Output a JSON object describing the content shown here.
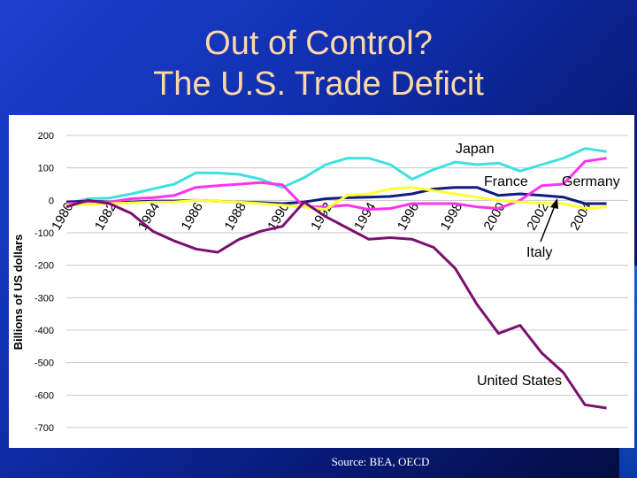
{
  "slide": {
    "title_line1": "Out of Control?",
    "title_line2": "The U.S. Trade Deficit",
    "source": "Source: BEA, OECD"
  },
  "chart_data": {
    "type": "line",
    "ylabel": "Billions of US dollars",
    "xlabel": "",
    "ylim": [
      -700,
      200
    ],
    "yticks": [
      200,
      100,
      0,
      -100,
      -200,
      -300,
      -400,
      -500,
      -600,
      -700
    ],
    "xlim": [
      1980,
      2006
    ],
    "xticks": [
      "1980",
      "1982",
      "1984",
      "1986",
      "1988",
      "1990",
      "1992",
      "1994",
      "1996",
      "1998",
      "2000",
      "2002",
      "2004"
    ],
    "grid": "horizontal",
    "x": [
      1980,
      1981,
      1982,
      1983,
      1984,
      1985,
      1986,
      1987,
      1988,
      1989,
      1990,
      1991,
      1992,
      1993,
      1994,
      1995,
      1996,
      1997,
      1998,
      1999,
      2000,
      2001,
      2002,
      2003,
      2004,
      2005,
      2006
    ],
    "series": [
      {
        "name": "Japan",
        "color": "#40e0e0",
        "values": [
          -12,
          5,
          7,
          20,
          35,
          50,
          85,
          84,
          80,
          65,
          40,
          70,
          110,
          130,
          130,
          110,
          65,
          95,
          118,
          110,
          115,
          90,
          110,
          130,
          160,
          150,
          null
        ]
      },
      {
        "name": "France",
        "color": "#101c80",
        "values": [
          -5,
          -2,
          -5,
          -5,
          -2,
          -2,
          0,
          -3,
          -5,
          -7,
          -10,
          -5,
          5,
          8,
          10,
          12,
          20,
          35,
          40,
          40,
          15,
          20,
          15,
          10,
          -10,
          -10,
          null
        ]
      },
      {
        "name": "Germany",
        "color": "#ff33ee",
        "values": [
          -10,
          -8,
          -5,
          5,
          8,
          15,
          40,
          45,
          50,
          55,
          48,
          -20,
          -20,
          -15,
          -28,
          -25,
          -10,
          -10,
          -10,
          -20,
          -25,
          0,
          45,
          50,
          120,
          130,
          null
        ]
      },
      {
        "name": "Italy",
        "color": "#ffff33",
        "values": [
          -15,
          -12,
          -10,
          -8,
          -5,
          -5,
          0,
          -3,
          -5,
          -10,
          -15,
          -20,
          -28,
          15,
          20,
          35,
          40,
          30,
          20,
          10,
          0,
          -5,
          -8,
          -10,
          -25,
          -20,
          null
        ]
      },
      {
        "name": "United States",
        "color": "#7a1070",
        "values": [
          -20,
          0,
          -10,
          -40,
          -95,
          -125,
          -150,
          -160,
          -120,
          -95,
          -80,
          -5,
          -50,
          -85,
          -120,
          -115,
          -120,
          -145,
          -210,
          -320,
          -410,
          -385,
          -470,
          -530,
          -630,
          -640,
          null
        ]
      }
    ],
    "annotations": [
      "Japan",
      "France",
      "Germany",
      "Italy",
      "United States"
    ]
  }
}
